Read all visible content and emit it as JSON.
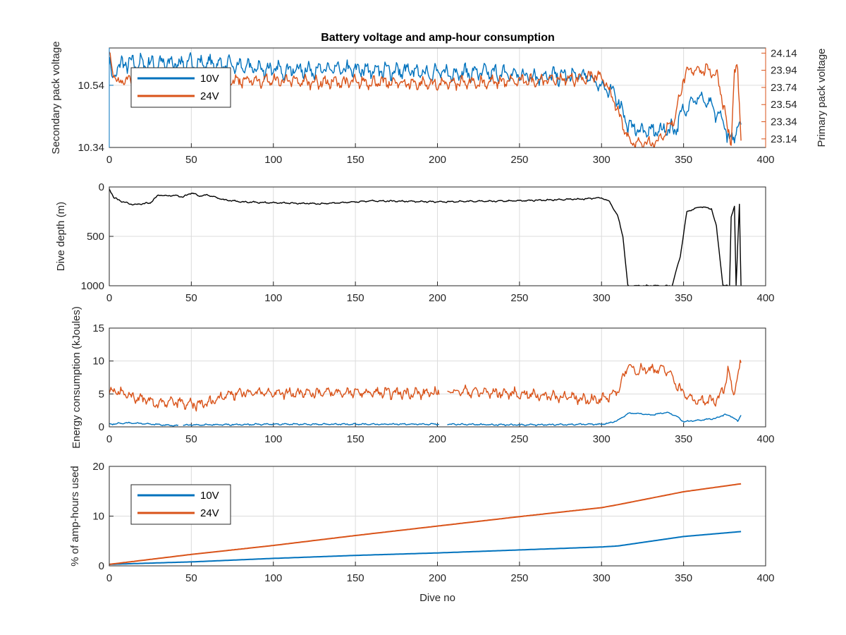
{
  "figure": {
    "title": "Battery voltage and amp-hour consumption",
    "colors": {
      "blue": "#0072BD",
      "orange": "#D95319",
      "black": "#000000",
      "grid": "#dcdcdc",
      "axis": "#262626"
    }
  },
  "chart_data": [
    {
      "type": "line",
      "title": "Battery voltage and amp-hour consumption",
      "xlabel": "",
      "ylabel_left": "Secondary pack voltage",
      "ylabel_right": "Primary pack voltage",
      "xlim": [
        0,
        400
      ],
      "ylim_left": [
        10.34,
        10.66
      ],
      "ylim_right": [
        23.04,
        24.2
      ],
      "xticks": [
        "0",
        "50",
        "100",
        "150",
        "200",
        "250",
        "300",
        "350",
        "400"
      ],
      "yticks_left": [
        "10.34",
        "10.54"
      ],
      "yticks_right": [
        "23.14",
        "23.34",
        "23.54",
        "23.74",
        "23.94",
        "24.14"
      ],
      "grid": true,
      "legend": {
        "position": "top-left",
        "entries": [
          "10V",
          "24V"
        ]
      },
      "series": [
        {
          "name": "10V",
          "axis": "left",
          "color": "#0072BD",
          "noise": 0.03,
          "x": [
            0,
            2,
            5,
            10,
            20,
            40,
            60,
            80,
            100,
            130,
            160,
            200,
            230,
            260,
            290,
            300,
            310,
            315,
            320,
            330,
            340,
            345,
            350,
            355,
            360,
            365,
            370,
            375,
            378,
            381,
            383,
            385
          ],
          "y": [
            10.62,
            10.55,
            10.6,
            10.61,
            10.61,
            10.61,
            10.61,
            10.6,
            10.59,
            10.59,
            10.59,
            10.58,
            10.58,
            10.57,
            10.57,
            10.54,
            10.5,
            10.42,
            10.4,
            10.39,
            10.4,
            10.4,
            10.46,
            10.49,
            10.5,
            10.48,
            10.45,
            10.42,
            10.35,
            10.38,
            10.42,
            10.4
          ]
        },
        {
          "name": "24V",
          "axis": "right",
          "color": "#D95319",
          "noise": 0.08,
          "x": [
            0,
            2,
            5,
            20,
            40,
            60,
            80,
            100,
            130,
            160,
            200,
            230,
            260,
            290,
            295,
            300,
            305,
            310,
            315,
            318,
            330,
            335,
            345,
            350,
            355,
            360,
            365,
            370,
            375,
            377,
            379,
            381,
            383,
            385
          ],
          "y": [
            24.15,
            23.95,
            23.8,
            23.88,
            23.9,
            23.85,
            23.82,
            23.82,
            23.8,
            23.8,
            23.78,
            23.8,
            23.82,
            23.85,
            23.88,
            23.85,
            23.7,
            23.45,
            23.2,
            23.1,
            23.1,
            23.12,
            23.4,
            23.85,
            23.95,
            23.95,
            23.94,
            23.9,
            23.5,
            23.2,
            23.1,
            23.95,
            23.9,
            23.12
          ]
        }
      ]
    },
    {
      "type": "line",
      "xlabel": "",
      "ylabel": "Dive depth (m)",
      "xlim": [
        0,
        400
      ],
      "ylim": [
        0,
        1000
      ],
      "yreverse": true,
      "xticks": [
        "0",
        "50",
        "100",
        "150",
        "200",
        "250",
        "300",
        "350",
        "400"
      ],
      "yticks": [
        "0",
        "500",
        "1000"
      ],
      "grid": true,
      "series": [
        {
          "name": "",
          "color": "#000000",
          "noise": 8,
          "x": [
            0,
            3,
            8,
            15,
            25,
            30,
            35,
            40,
            45,
            50,
            55,
            60,
            70,
            80,
            100,
            130,
            160,
            200,
            250,
            290,
            300,
            305,
            310,
            313,
            316,
            320,
            330,
            340,
            343,
            348,
            352,
            360,
            367,
            370,
            374,
            376,
            378,
            379,
            381,
            382,
            384,
            385
          ],
          "y": [
            20,
            110,
            150,
            180,
            160,
            80,
            90,
            85,
            100,
            60,
            90,
            80,
            130,
            150,
            160,
            170,
            140,
            150,
            140,
            120,
            110,
            150,
            300,
            500,
            1000,
            1000,
            1000,
            1000,
            1000,
            700,
            250,
            200,
            220,
            400,
            1000,
            1000,
            1000,
            300,
            200,
            1000,
            170,
            1000
          ]
        }
      ]
    },
    {
      "type": "line",
      "xlabel": "",
      "ylabel": "Energy consumption (kJoules)",
      "xlim": [
        0,
        400
      ],
      "ylim": [
        0,
        15
      ],
      "xticks": [
        "0",
        "50",
        "100",
        "150",
        "200",
        "250",
        "300",
        "350",
        "400"
      ],
      "yticks": [
        "0",
        "5",
        "10",
        "15"
      ],
      "grid": true,
      "series": [
        {
          "name": "24V",
          "color": "#D95319",
          "noise": 0.9,
          "gaps": [
            [
              201,
              206
            ]
          ],
          "x": [
            0,
            5,
            10,
            20,
            30,
            40,
            50,
            60,
            70,
            80,
            100,
            150,
            200,
            206,
            250,
            280,
            300,
            310,
            316,
            320,
            330,
            340,
            350,
            355,
            360,
            370,
            375,
            377,
            380,
            383,
            385
          ],
          "y": [
            5,
            5.5,
            4.8,
            4.2,
            3.5,
            3.8,
            3.3,
            3.6,
            4.8,
            5.2,
            5.2,
            5.2,
            5.1,
            5.5,
            5,
            4.5,
            4,
            5.5,
            9.3,
            8.6,
            8.8,
            8.6,
            5,
            4.2,
            3.9,
            4,
            6,
            9.2,
            5,
            8,
            9.5
          ]
        },
        {
          "name": "10V",
          "color": "#0072BD",
          "noise": 0.12,
          "gaps": [
            [
              42,
              45
            ],
            [
              201,
              206
            ]
          ],
          "x": [
            0,
            10,
            20,
            40,
            50,
            100,
            200,
            206,
            250,
            300,
            305,
            310,
            316,
            320,
            330,
            340,
            345,
            350,
            355,
            370,
            375,
            380,
            383,
            385
          ],
          "y": [
            0.4,
            0.6,
            0.5,
            0.2,
            0.3,
            0.4,
            0.4,
            0.4,
            0.3,
            0.4,
            0.6,
            1,
            2,
            2.1,
            1.8,
            2.2,
            1.7,
            0.8,
            0.9,
            1.3,
            1.9,
            1.5,
            0.8,
            1.8
          ]
        }
      ]
    },
    {
      "type": "line",
      "xlabel": "Dive no",
      "ylabel": "% of amp-hours used",
      "xlim": [
        0,
        400
      ],
      "ylim": [
        0,
        20
      ],
      "xticks": [
        "0",
        "50",
        "100",
        "150",
        "200",
        "250",
        "300",
        "350",
        "400"
      ],
      "yticks": [
        "0",
        "10",
        "20"
      ],
      "grid": true,
      "legend": {
        "position": "top-left",
        "entries": [
          "10V",
          "24V"
        ]
      },
      "series": [
        {
          "name": "10V",
          "color": "#0072BD",
          "noise": 0,
          "x": [
            0,
            50,
            100,
            150,
            200,
            250,
            300,
            310,
            350,
            385
          ],
          "y": [
            0.3,
            0.8,
            1.5,
            2.1,
            2.6,
            3.2,
            3.8,
            4,
            5.9,
            6.9
          ]
        },
        {
          "name": "24V",
          "color": "#D95319",
          "noise": 0,
          "x": [
            0,
            50,
            100,
            150,
            200,
            250,
            300,
            310,
            350,
            385
          ],
          "y": [
            0.3,
            2.3,
            4.1,
            6.1,
            8,
            9.9,
            11.7,
            12.3,
            14.9,
            16.5
          ]
        }
      ]
    }
  ]
}
